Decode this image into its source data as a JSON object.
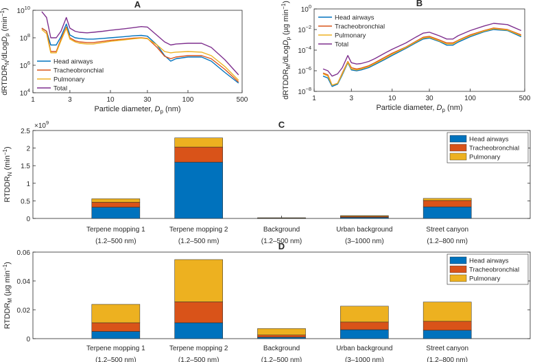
{
  "chart_data": [
    {
      "id": "A",
      "type": "line",
      "title": "A",
      "xlabel": "Particle diameter, D",
      "xlabel_sub": "p",
      "xlabel_unit": "(nm)",
      "ylabel_parts": {
        "pre": "dRTDDR",
        "sub1": "N",
        "mid": "/dLogD",
        "sub2": "p",
        "post": " (min",
        "sup": "−1",
        "end": ")"
      },
      "xscale": "log",
      "yscale": "log",
      "xlim": [
        1,
        500
      ],
      "ylim": [
        10000,
        10000000000
      ],
      "xticks": [
        {
          "value": 1,
          "label": "1"
        },
        {
          "value": 3,
          "label": "3"
        },
        {
          "value": 10,
          "label": "10"
        },
        {
          "value": 30,
          "label": "30"
        },
        {
          "value": 100,
          "label": "100"
        },
        {
          "value": 500,
          "label": "500"
        }
      ],
      "yticks": [
        {
          "value": 10000,
          "base": "10",
          "exp": "4"
        },
        {
          "value": 1000000,
          "base": "10",
          "exp": "6"
        },
        {
          "value": 100000000,
          "base": "10",
          "exp": "8"
        },
        {
          "value": 10000000000,
          "base": "10",
          "exp": "10"
        }
      ],
      "legend": "bottom-left",
      "x": [
        1.3,
        1.5,
        1.7,
        2.0,
        2.3,
        2.7,
        3.0,
        3.5,
        4.0,
        5.0,
        6.0,
        8.0,
        10.0,
        15.0,
        20.0,
        25.0,
        30.0,
        40.0,
        50.0,
        60.0,
        70.0,
        100.0,
        150.0,
        200.0,
        300.0,
        450.0
      ],
      "series": [
        {
          "name": "Head airways",
          "color": "#0072BD",
          "values": [
            500000000,
            300000000,
            30000000,
            30000000,
            120000000,
            1000000000,
            160000000,
            100000000,
            90000000,
            80000000,
            80000000,
            90000000,
            100000000,
            120000000,
            140000000,
            150000000,
            130000000,
            30000000,
            5000000,
            2000000,
            3000000,
            4000000,
            4000000,
            2000000,
            300000,
            50000
          ]
        },
        {
          "name": "Tracheobronchial",
          "color": "#D95319",
          "values": [
            500000000,
            300000000,
            10000000,
            10000000,
            80000000,
            600000000,
            100000000,
            60000000,
            50000000,
            45000000,
            45000000,
            55000000,
            65000000,
            80000000,
            95000000,
            100000000,
            90000000,
            20000000,
            4500000,
            3000000,
            4000000,
            5000000,
            5000000,
            3000000,
            500000,
            60000
          ]
        },
        {
          "name": "Pulmonary",
          "color": "#EDB120",
          "values": [
            400000000,
            200000000,
            8000000,
            8000000,
            60000000,
            500000000,
            80000000,
            50000000,
            40000000,
            35000000,
            35000000,
            45000000,
            55000000,
            70000000,
            85000000,
            95000000,
            85000000,
            30000000,
            10000000,
            8000000,
            9000000,
            10000000,
            9000000,
            5000000,
            800000,
            80000
          ]
        },
        {
          "name": "Total",
          "color": "#7E2F8E",
          "values": [
            8000000000,
            3000000000,
            100000000,
            100000000,
            300000000,
            3000000000,
            500000000,
            300000000,
            250000000,
            230000000,
            250000000,
            300000000,
            350000000,
            450000000,
            550000000,
            650000000,
            600000000,
            150000000,
            50000000,
            30000000,
            35000000,
            40000000,
            40000000,
            20000000,
            2500000,
            200000
          ]
        }
      ]
    },
    {
      "id": "B",
      "type": "line",
      "title": "B",
      "xlabel": "Particle diameter, D",
      "xlabel_sub": "p",
      "xlabel_unit": "(nm)",
      "ylabel_parts": {
        "pre": "dRTDDR",
        "sub1": "M",
        "mid": "/dLogD",
        "sub2": "p",
        "post": " (µg min",
        "sup": "−1",
        "end": ")"
      },
      "xscale": "log",
      "yscale": "log",
      "xlim": [
        1,
        500
      ],
      "ylim": [
        1e-08,
        1
      ],
      "xticks": [
        {
          "value": 1,
          "label": "1"
        },
        {
          "value": 3,
          "label": "3"
        },
        {
          "value": 10,
          "label": "10"
        },
        {
          "value": 30,
          "label": "30"
        },
        {
          "value": 100,
          "label": "100"
        },
        {
          "value": 500,
          "label": "500"
        }
      ],
      "yticks": [
        {
          "value": 1e-08,
          "base": "10",
          "exp": "−8"
        },
        {
          "value": 1e-06,
          "base": "10",
          "exp": "−6"
        },
        {
          "value": 0.0001,
          "base": "10",
          "exp": "−4"
        },
        {
          "value": 0.01,
          "base": "10",
          "exp": "−2"
        },
        {
          "value": 1,
          "base": "10",
          "exp": "0"
        }
      ],
      "legend": "top-left",
      "x": [
        1.3,
        1.5,
        1.7,
        2.0,
        2.3,
        2.7,
        3.0,
        3.5,
        4.0,
        5.0,
        6.0,
        8.0,
        10.0,
        15.0,
        20.0,
        25.0,
        30.0,
        40.0,
        50.0,
        60.0,
        70.0,
        100.0,
        150.0,
        200.0,
        300.0,
        450.0
      ],
      "series": [
        {
          "name": "Head airways",
          "color": "#0072BD",
          "values": [
            3e-07,
            2e-07,
            3e-08,
            5e-08,
            4e-07,
            6e-06,
            1.2e-06,
            1e-06,
            1.2e-06,
            2e-06,
            4e-06,
            1.2e-05,
            3e-05,
            0.00015,
            0.0005,
            0.0012,
            0.0015,
            0.0007,
            0.0003,
            0.0003,
            0.0006,
            0.002,
            0.006,
            0.01,
            0.008,
            0.002
          ]
        },
        {
          "name": "Tracheobronchial",
          "color": "#D95319",
          "values": [
            6e-07,
            4e-07,
            4e-08,
            6e-08,
            6e-07,
            8e-06,
            2e-06,
            1.5e-06,
            1.8e-06,
            3e-06,
            6e-06,
            2e-05,
            5e-05,
            0.0002,
            0.0007,
            0.0018,
            0.0022,
            0.001,
            0.0005,
            0.0005,
            0.0009,
            0.003,
            0.008,
            0.014,
            0.01,
            0.003
          ]
        },
        {
          "name": "Pulmonary",
          "color": "#EDB120",
          "values": [
            5e-07,
            3e-07,
            4e-08,
            6e-08,
            5e-07,
            7e-06,
            1.5e-06,
            1.2e-06,
            1.5e-06,
            2.5e-06,
            5e-06,
            1.5e-05,
            4e-05,
            0.00018,
            0.0006,
            0.0015,
            0.0018,
            0.0008,
            0.0004,
            0.0004,
            0.0008,
            0.0025,
            0.007,
            0.012,
            0.009,
            0.0025
          ]
        },
        {
          "name": "Total",
          "color": "#7E2F8E",
          "values": [
            1.5e-06,
            1e-06,
            3e-07,
            5e-07,
            2e-06,
            3e-05,
            6e-06,
            4.5e-06,
            5e-06,
            8e-06,
            1.5e-05,
            5e-05,
            0.00012,
            0.0005,
            0.0018,
            0.0045,
            0.0055,
            0.0025,
            0.0012,
            0.0012,
            0.0025,
            0.008,
            0.022,
            0.04,
            0.03,
            0.008
          ]
        }
      ]
    },
    {
      "id": "C",
      "type": "bar",
      "stacked": true,
      "title": "C",
      "ylabel_parts": {
        "pre": "RTDDR",
        "sub1": "N",
        "post": " (min",
        "sup": "−1",
        "end": ")"
      },
      "exponent_label": {
        "base": "×10",
        "exp": "9"
      },
      "ylim": [
        0,
        2.5
      ],
      "yticks": [
        {
          "value": 0,
          "label": "0"
        },
        {
          "value": 0.5,
          "label": "0.5"
        },
        {
          "value": 1,
          "label": "1"
        },
        {
          "value": 1.5,
          "label": "1.5"
        },
        {
          "value": 2,
          "label": "2"
        },
        {
          "value": 2.5,
          "label": "2.5"
        }
      ],
      "categories": [
        {
          "name": "Terpene mopping 1",
          "range": "(1.2–500 nm)"
        },
        {
          "name": "Terpene mopping 2",
          "range": "(1.2–500 nm)"
        },
        {
          "name": "Background",
          "range": "(1.2–500 nm)"
        },
        {
          "name": "Urban background",
          "range": "(3–1000 nm)"
        },
        {
          "name": "Street canyon",
          "range": "(1.2–800 nm)"
        }
      ],
      "legend": "top-right",
      "series": [
        {
          "name": "Head airways",
          "color": "#0072BD",
          "values": [
            0.32,
            1.6,
            0.01,
            0.03,
            0.33
          ]
        },
        {
          "name": "Tracheobronchial",
          "color": "#D95319",
          "values": [
            0.14,
            0.43,
            0.005,
            0.03,
            0.18
          ]
        },
        {
          "name": "Pulmonary",
          "color": "#EDB120",
          "values": [
            0.1,
            0.26,
            0.005,
            0.02,
            0.06
          ]
        }
      ]
    },
    {
      "id": "D",
      "type": "bar",
      "stacked": true,
      "title": "D",
      "ylabel_parts": {
        "pre": "RTDDR",
        "sub1": "M",
        "post": " (µg min",
        "sup": "−1",
        "end": ")"
      },
      "ylim": [
        0,
        0.06
      ],
      "yticks": [
        {
          "value": 0,
          "label": "0"
        },
        {
          "value": 0.02,
          "label": "0.02"
        },
        {
          "value": 0.04,
          "label": "0.04"
        },
        {
          "value": 0.06,
          "label": "0.06"
        }
      ],
      "categories": [
        {
          "name": "Terpene mopping 1",
          "range": "(1.2–500 nm)"
        },
        {
          "name": "Terpene mopping 2",
          "range": "(1.2–500 nm)"
        },
        {
          "name": "Background",
          "range": "(1.2–500 nm)"
        },
        {
          "name": "Urban background",
          "range": "(3–1000 nm)"
        },
        {
          "name": "Street canyon",
          "range": "(1.2–800 nm)"
        }
      ],
      "legend": "top-right",
      "series": [
        {
          "name": "Head airways",
          "color": "#0072BD",
          "values": [
            0.005,
            0.011,
            0.001,
            0.0062,
            0.0058
          ]
        },
        {
          "name": "Tracheobronchial",
          "color": "#D95319",
          "values": [
            0.006,
            0.0145,
            0.0015,
            0.0053,
            0.0062
          ]
        },
        {
          "name": "Pulmonary",
          "color": "#EDB120",
          "values": [
            0.0128,
            0.0293,
            0.0045,
            0.011,
            0.0134
          ]
        }
      ]
    }
  ]
}
